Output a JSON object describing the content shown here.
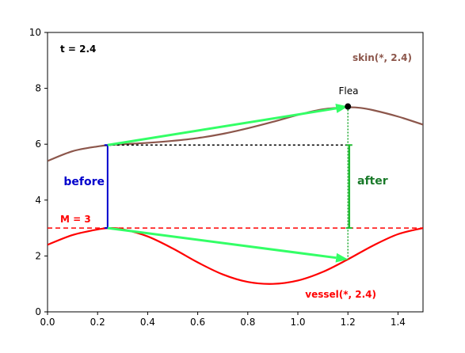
{
  "chart_data": {
    "type": "line",
    "title": "",
    "xlabel": "",
    "ylabel": "",
    "xlim": [
      0.0,
      1.5
    ],
    "ylim": [
      0,
      10
    ],
    "x_ticks": [
      "0.0",
      "0.2",
      "0.4",
      "0.6",
      "0.8",
      "1.0",
      "1.2",
      "1.4"
    ],
    "y_ticks": [
      "0",
      "2",
      "4",
      "6",
      "8",
      "10"
    ],
    "grid": false,
    "series": [
      {
        "name": "skin(*, 2.4)",
        "color": "#8c564b",
        "x": [
          0.0,
          0.1,
          0.2,
          0.25,
          0.3,
          0.4,
          0.5,
          0.6,
          0.7,
          0.8,
          0.9,
          1.0,
          1.1,
          1.2,
          1.25,
          1.3,
          1.4,
          1.5
        ],
        "y": [
          5.4,
          5.75,
          5.92,
          5.97,
          6.0,
          6.05,
          6.12,
          6.22,
          6.37,
          6.57,
          6.8,
          7.05,
          7.25,
          7.32,
          7.3,
          7.22,
          6.99,
          6.7
        ]
      },
      {
        "name": "vessel(*, 2.4)",
        "color": "#ff0000",
        "x": [
          0.0,
          0.1,
          0.2,
          0.25,
          0.3,
          0.4,
          0.5,
          0.6,
          0.7,
          0.8,
          0.9,
          1.0,
          1.1,
          1.2,
          1.3,
          1.4,
          1.5
        ],
        "y": [
          2.4,
          2.75,
          2.95,
          3.0,
          2.96,
          2.7,
          2.27,
          1.77,
          1.34,
          1.07,
          1.0,
          1.12,
          1.43,
          1.88,
          2.37,
          2.78,
          3.0
        ]
      }
    ],
    "reference_line": {
      "label": "M = 3",
      "y": 3,
      "color": "#ff0000"
    },
    "time_label": "t = 2.4",
    "flea": {
      "label": "Flea",
      "x": 1.2,
      "y": 7.35
    },
    "before": {
      "label": "before",
      "x": 0.24,
      "y_top": 5.97,
      "y_bottom": 3.0,
      "color": "#0000cc"
    },
    "after": {
      "label": "after",
      "x": 1.205,
      "y_top": 5.97,
      "y_bottom": 3.0,
      "color": "#22bb33",
      "label_color": "#1a7a2a"
    },
    "level_line_y": 5.97,
    "arrows": [
      {
        "x1": 0.24,
        "y1": 5.97,
        "x2": 1.2,
        "y2": 7.35,
        "color": "#33ff66"
      },
      {
        "x1": 0.24,
        "y1": 3.0,
        "x2": 1.2,
        "y2": 1.88,
        "color": "#33ff66"
      }
    ]
  }
}
